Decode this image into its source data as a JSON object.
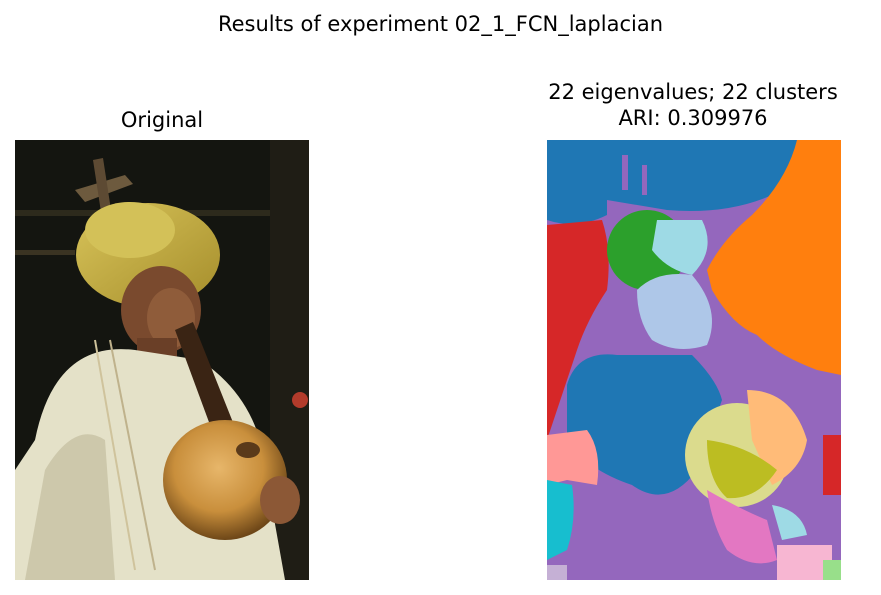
{
  "figure": {
    "suptitle": "Results of experiment 02_1_FCN_laplacian"
  },
  "panels": [
    {
      "title": "Original",
      "image": "photo of man in yellow turban holding a gourd instrument"
    },
    {
      "title_line1": "22 eigenvalues; 22 clusters",
      "title_line2": "ARI: 0.309976",
      "image": "segmentation map with 22 colored clusters"
    }
  ],
  "colors": {
    "background": "#ffffff",
    "cluster_blue": "#1f77b4",
    "cluster_orange": "#ff7f0e",
    "cluster_green": "#2ca02c",
    "cluster_red": "#d62728",
    "cluster_purple": "#9467bd",
    "cluster_pink": "#e377c2",
    "cluster_light_pink": "#f7b6d2",
    "cluster_salmon": "#ff9896",
    "cluster_light_blue": "#9edae5",
    "cluster_lavender": "#aec7e8",
    "cluster_olive": "#bcbd22",
    "cluster_khaki": "#dbdb8d",
    "cluster_peach": "#ffbb78",
    "cluster_cyan": "#17becf",
    "cluster_light_green": "#98df8a",
    "cluster_light_purple": "#c5b0d5"
  }
}
